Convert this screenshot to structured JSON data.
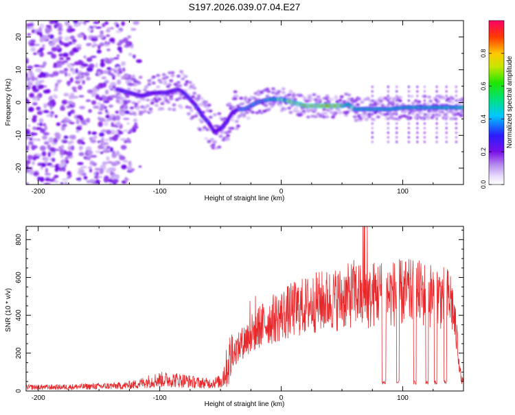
{
  "title": "S197.2026.039.07.04.E27",
  "chart_data": [
    {
      "type": "heatmap",
      "xlabel": "Height of straight line (km)",
      "ylabel": "Frequency (Hz)",
      "xlim": [
        -210,
        150
      ],
      "ylim": [
        -25,
        25
      ],
      "xticks": [
        -200,
        -100,
        0,
        100
      ],
      "yticks": [
        -20,
        -10,
        0,
        10,
        20
      ],
      "colorbar": {
        "label": "Normalized spectral amplitude",
        "range": [
          0,
          1
        ],
        "ticks": [
          0.0,
          0.2,
          0.4,
          0.6,
          0.8
        ]
      },
      "ridge": {
        "x": [
          -135,
          -125,
          -115,
          -105,
          -95,
          -85,
          -80,
          -75,
          -70,
          -65,
          -60,
          -55,
          -50,
          -45,
          -40,
          -35,
          -30,
          -20,
          -10,
          0,
          10,
          20,
          30,
          40,
          50,
          55,
          60,
          70,
          80,
          90,
          100,
          110,
          120,
          130,
          140,
          150
        ],
        "y": [
          4,
          3,
          2,
          3,
          3,
          4,
          3,
          1,
          -1,
          -4,
          -6,
          -9,
          -8,
          -6,
          -3,
          -2,
          -2,
          0,
          1,
          1,
          0,
          -1,
          -1,
          -1,
          -1,
          -0.5,
          -2,
          -2,
          -2,
          -2,
          -1.5,
          -1.5,
          -1.5,
          -1.5,
          -1.5,
          -1.5
        ]
      }
    },
    {
      "type": "line",
      "xlabel": "Height of straight line (km)",
      "ylabel": "SNR (10 * v/v)",
      "xlim": [
        -210,
        150
      ],
      "ylim": [
        0,
        870
      ],
      "xticks": [
        -200,
        -100,
        0,
        100
      ],
      "yticks": [
        0,
        200,
        400,
        600,
        800
      ],
      "series": [
        {
          "name": "SNR",
          "color": "#e8272a",
          "x": [
            -210,
            -190,
            -170,
            -150,
            -130,
            -120,
            -110,
            -100,
            -90,
            -80,
            -70,
            -60,
            -50,
            -45,
            -40,
            -35,
            -30,
            -25,
            -20,
            -10,
            0,
            10,
            20,
            30,
            40,
            50,
            55,
            60,
            65,
            68,
            70,
            72,
            75,
            80,
            85,
            90,
            95,
            100,
            110,
            120,
            130,
            135,
            140,
            142,
            145,
            148,
            150
          ],
          "y": [
            20,
            20,
            22,
            25,
            28,
            35,
            50,
            60,
            60,
            55,
            45,
            40,
            50,
            120,
            200,
            230,
            270,
            300,
            330,
            370,
            400,
            430,
            450,
            470,
            480,
            490,
            500,
            520,
            510,
            400,
            540,
            470,
            510,
            520,
            515,
            510,
            520,
            520,
            515,
            510,
            500,
            490,
            480,
            400,
            250,
            60,
            50
          ],
          "dropouts": [
            {
              "x0": 83,
              "x1": 86,
              "y": 45
            },
            {
              "x0": 95,
              "x1": 97,
              "y": 45
            },
            {
              "x0": 109,
              "x1": 111,
              "y": 45
            },
            {
              "x0": 119,
              "x1": 121,
              "y": 45
            },
            {
              "x0": 126,
              "x1": 128,
              "y": 45
            },
            {
              "x0": 134,
              "x1": 136,
              "y": 45
            }
          ]
        }
      ]
    }
  ]
}
